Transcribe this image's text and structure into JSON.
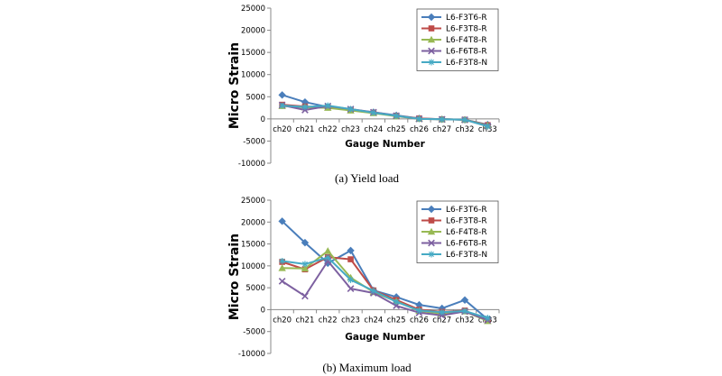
{
  "chart_data": [
    {
      "type": "line",
      "caption": "(a)  Yield  load",
      "xlabel": "Gauge Number",
      "ylabel": "Micro Strain",
      "ylim": [
        -10000,
        25000
      ],
      "yticks": [
        -10000,
        -5000,
        0,
        5000,
        10000,
        15000,
        20000,
        25000
      ],
      "categories": [
        "ch20",
        "ch21",
        "ch22",
        "ch23",
        "ch24",
        "ch25",
        "ch26",
        "ch27",
        "ch32",
        "ch33"
      ],
      "legend_position": "top-right",
      "grid": false,
      "series": [
        {
          "name": "L6-F3T6-R",
          "color": "#4a7ebb",
          "marker": "diamond",
          "values": [
            5400,
            3800,
            2700,
            2100,
            1500,
            800,
            100,
            -100,
            -200,
            -1300
          ]
        },
        {
          "name": "L6-F3T8-R",
          "color": "#be4b48",
          "marker": "square",
          "values": [
            3200,
            2800,
            2600,
            2000,
            1400,
            700,
            100,
            -100,
            -200,
            -1400
          ]
        },
        {
          "name": "L6-F4T8-R",
          "color": "#98b954",
          "marker": "triangle",
          "values": [
            2900,
            2600,
            2500,
            1900,
            1300,
            600,
            0,
            -100,
            -200,
            -1500
          ]
        },
        {
          "name": "L6-F6T8-R",
          "color": "#7d60a0",
          "marker": "x",
          "values": [
            3100,
            2000,
            2900,
            2200,
            1500,
            700,
            0,
            -100,
            -200,
            -1600
          ]
        },
        {
          "name": "L6-F3T8-N",
          "color": "#46aac4",
          "marker": "star",
          "values": [
            3000,
            2700,
            3000,
            2200,
            1400,
            700,
            0,
            -100,
            -200,
            -1700
          ]
        }
      ]
    },
    {
      "type": "line",
      "caption": "(b)  Maximum  load",
      "xlabel": "Gauge Number",
      "ylabel": "Micro Strain",
      "ylim": [
        -10000,
        25000
      ],
      "yticks": [
        -10000,
        -5000,
        0,
        5000,
        10000,
        15000,
        20000,
        25000
      ],
      "categories": [
        "ch20",
        "ch21",
        "ch22",
        "ch23",
        "ch24",
        "ch25",
        "ch26",
        "ch27",
        "ch32",
        "ch33"
      ],
      "legend_position": "top-right",
      "grid": false,
      "series": [
        {
          "name": "L6-F3T6-R",
          "color": "#4a7ebb",
          "marker": "diamond",
          "values": [
            20200,
            15300,
            10600,
            13500,
            4400,
            2900,
            1100,
            300,
            2200,
            -2200
          ]
        },
        {
          "name": "L6-F3T8-R",
          "color": "#be4b48",
          "marker": "square",
          "values": [
            10900,
            9200,
            12000,
            11500,
            4400,
            2200,
            0,
            -500,
            -200,
            -2500
          ]
        },
        {
          "name": "L6-F4T8-R",
          "color": "#98b954",
          "marker": "triangle",
          "values": [
            9500,
            9400,
            13400,
            7300,
            4000,
            1900,
            -300,
            -900,
            -400,
            -2600
          ]
        },
        {
          "name": "L6-F6T8-R",
          "color": "#7d60a0",
          "marker": "x",
          "values": [
            6500,
            3100,
            11100,
            4800,
            3800,
            900,
            -700,
            -1300,
            -400,
            -2400
          ]
        },
        {
          "name": "L6-F3T8-N",
          "color": "#46aac4",
          "marker": "star",
          "values": [
            11100,
            10400,
            11900,
            6800,
            4300,
            1800,
            -200,
            -600,
            -300,
            -1900
          ]
        }
      ]
    }
  ]
}
